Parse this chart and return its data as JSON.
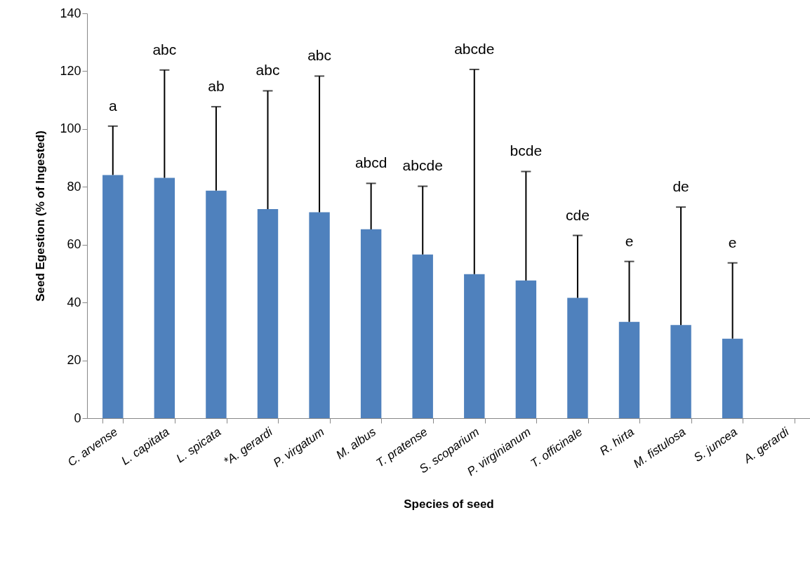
{
  "chart_data": {
    "type": "bar",
    "xlabel": "Species of seed",
    "ylabel": "Seed Egestion (% of Ingested)",
    "categories": [
      "C. arvense",
      "L. capitata",
      "L. spicata",
      "*A. gerardi",
      "P. virgatum",
      "M. albus",
      "T. pratense",
      "S. scoparium",
      "P. virginianum",
      "T. officinale",
      "R. hirta",
      "M. fistulosa",
      "S. juncea",
      "A. gerardi"
    ],
    "values": [
      84.1,
      83.1,
      78.7,
      72.3,
      71.2,
      65.3,
      56.6,
      49.8,
      47.6,
      41.6,
      33.3,
      32.2,
      27.5,
      0
    ],
    "color": "#4f81bd",
    "errors": [
      [
        84.1,
        101.0
      ],
      [
        83.1,
        120.4
      ],
      [
        78.7,
        107.7
      ],
      [
        72.3,
        113.2
      ],
      [
        71.2,
        118.3
      ],
      [
        65.3,
        81.2
      ],
      [
        56.6,
        80.2
      ],
      [
        49.8,
        120.6
      ],
      [
        47.6,
        85.3
      ],
      [
        41.6,
        63.2
      ],
      [
        33.3,
        54.2
      ],
      [
        32.2,
        73.0
      ],
      [
        27.5,
        53.7
      ],
      null
    ],
    "annotations": [
      "a",
      "abc",
      "ab",
      "abc",
      "abc",
      "abcd",
      "abcde",
      "abcde",
      "bcde",
      "cde",
      "e",
      "de",
      "e"
    ],
    "ylim": [
      0,
      140
    ],
    "yticks": [
      0,
      20,
      40,
      60,
      80,
      100,
      120,
      140
    ]
  }
}
